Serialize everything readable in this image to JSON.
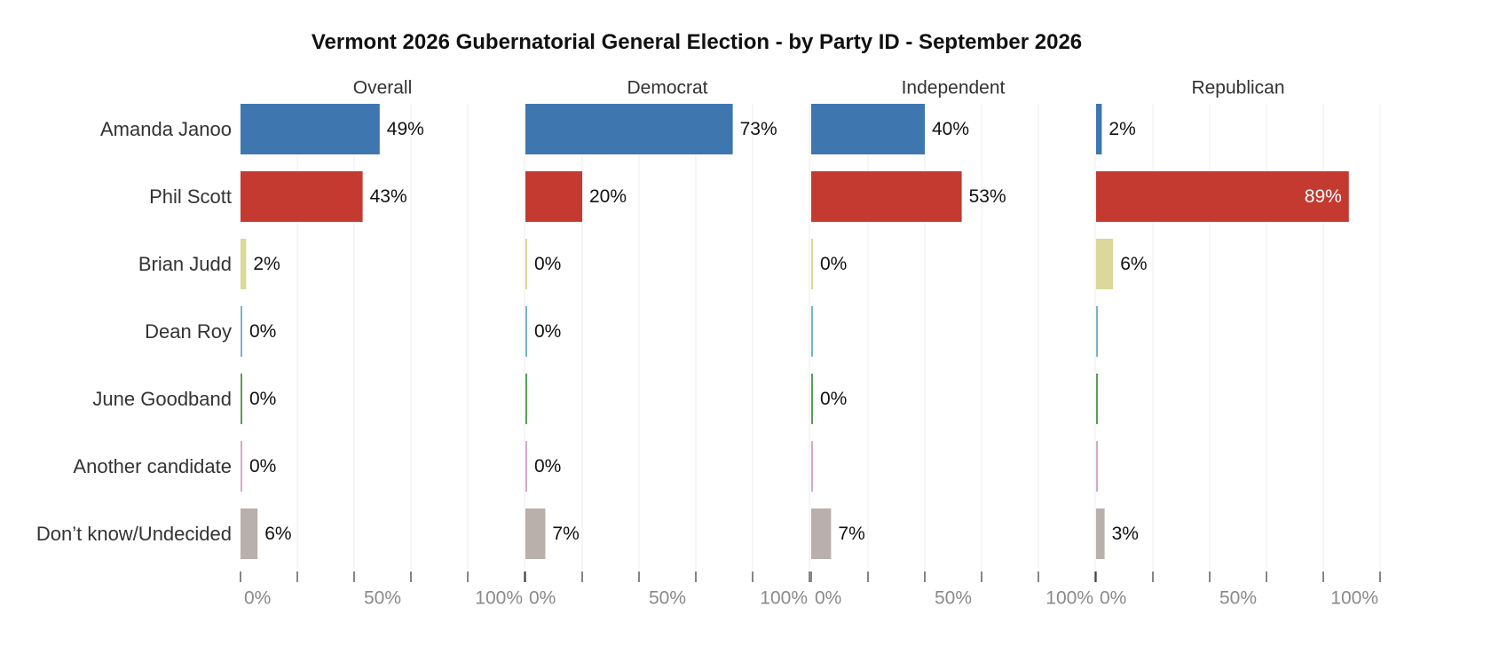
{
  "chart_data": {
    "type": "bar",
    "orientation": "horizontal",
    "title": "Vermont 2026 Gubernatorial General Election - by Party ID - September 2026",
    "categories": [
      "Amanda Janoo",
      "Phil Scott",
      "Brian Judd",
      "Dean Roy",
      "June Goodband",
      "Another candidate",
      "Don’t know/Undecided"
    ],
    "category_colors": [
      "#3e76b0",
      "#c43a31",
      "#dbd89a",
      "#78b4c8",
      "#5a9e55",
      "#d4a8c8",
      "#b9b0ac"
    ],
    "xlim": [
      0,
      100
    ],
    "xticks": [
      0,
      50,
      100
    ],
    "xtick_labels": [
      "0%",
      "50%",
      "100%"
    ],
    "grid": true,
    "panels": [
      {
        "name": "Overall",
        "values": [
          49,
          43,
          2,
          0.5,
          0.5,
          0.5,
          6
        ],
        "labels": [
          "49%",
          "43%",
          "2%",
          "0%",
          "0%",
          "0%",
          "6%"
        ]
      },
      {
        "name": "Democrat",
        "values": [
          73,
          20,
          0.5,
          0.5,
          0.5,
          0.5,
          7
        ],
        "labels": [
          "73%",
          "20%",
          "0%",
          "0%",
          "",
          "0%",
          "7%"
        ]
      },
      {
        "name": "Independent",
        "values": [
          40,
          53,
          0.5,
          0.5,
          0.5,
          0.5,
          7
        ],
        "labels": [
          "40%",
          "53%",
          "0%",
          "",
          "0%",
          "",
          "7%"
        ]
      },
      {
        "name": "Republican",
        "values": [
          2,
          89,
          6,
          0.5,
          0.5,
          0.5,
          3
        ],
        "labels": [
          "2%",
          "89%",
          "6%",
          "",
          "",
          "",
          "3%"
        ]
      }
    ]
  }
}
